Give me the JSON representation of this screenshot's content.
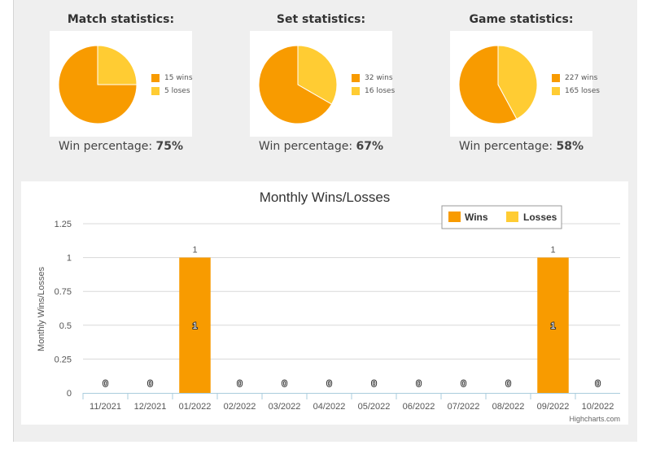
{
  "colors": {
    "wins": "#F89B00",
    "losses": "#FFCC33",
    "panel": "#efefef"
  },
  "stats": [
    {
      "title": "Match statistics:",
      "wins": 15,
      "loses": 5,
      "wins_label": "15 wins",
      "loses_label": "5 loses",
      "pct_label": "Win percentage: ",
      "pct_value": "75%"
    },
    {
      "title": "Set statistics:",
      "wins": 32,
      "loses": 16,
      "wins_label": "32 wins",
      "loses_label": "16 loses",
      "pct_label": "Win percentage: ",
      "pct_value": "67%"
    },
    {
      "title": "Game statistics:",
      "wins": 227,
      "loses": 165,
      "wins_label": "227 wins",
      "loses_label": "165 loses",
      "pct_label": "Win percentage: ",
      "pct_value": "58%"
    }
  ],
  "chart_data": {
    "type": "bar",
    "title": "Monthly Wins/Losses",
    "ylabel": "Monthly Wins/Losses",
    "xlabel": "",
    "categories": [
      "11/2021",
      "12/2021",
      "01/2022",
      "02/2022",
      "03/2022",
      "04/2022",
      "05/2022",
      "06/2022",
      "07/2022",
      "08/2022",
      "09/2022",
      "10/2022"
    ],
    "series": [
      {
        "name": "Wins",
        "values": [
          0,
          0,
          1,
          0,
          0,
          0,
          0,
          0,
          0,
          0,
          1,
          0
        ]
      },
      {
        "name": "Losses",
        "values": [
          0,
          0,
          0,
          0,
          0,
          0,
          0,
          0,
          0,
          0,
          0,
          0
        ]
      }
    ],
    "stack_totals": [
      0,
      0,
      1,
      0,
      0,
      0,
      0,
      0,
      0,
      0,
      1,
      0
    ],
    "ylim": [
      0,
      1.25
    ],
    "yticks": [
      "0",
      "0.25",
      "0.5",
      "0.75",
      "1",
      "1.25"
    ],
    "grid": true,
    "stacked": true,
    "legend": "top-right",
    "credits": "Highcharts.com"
  }
}
